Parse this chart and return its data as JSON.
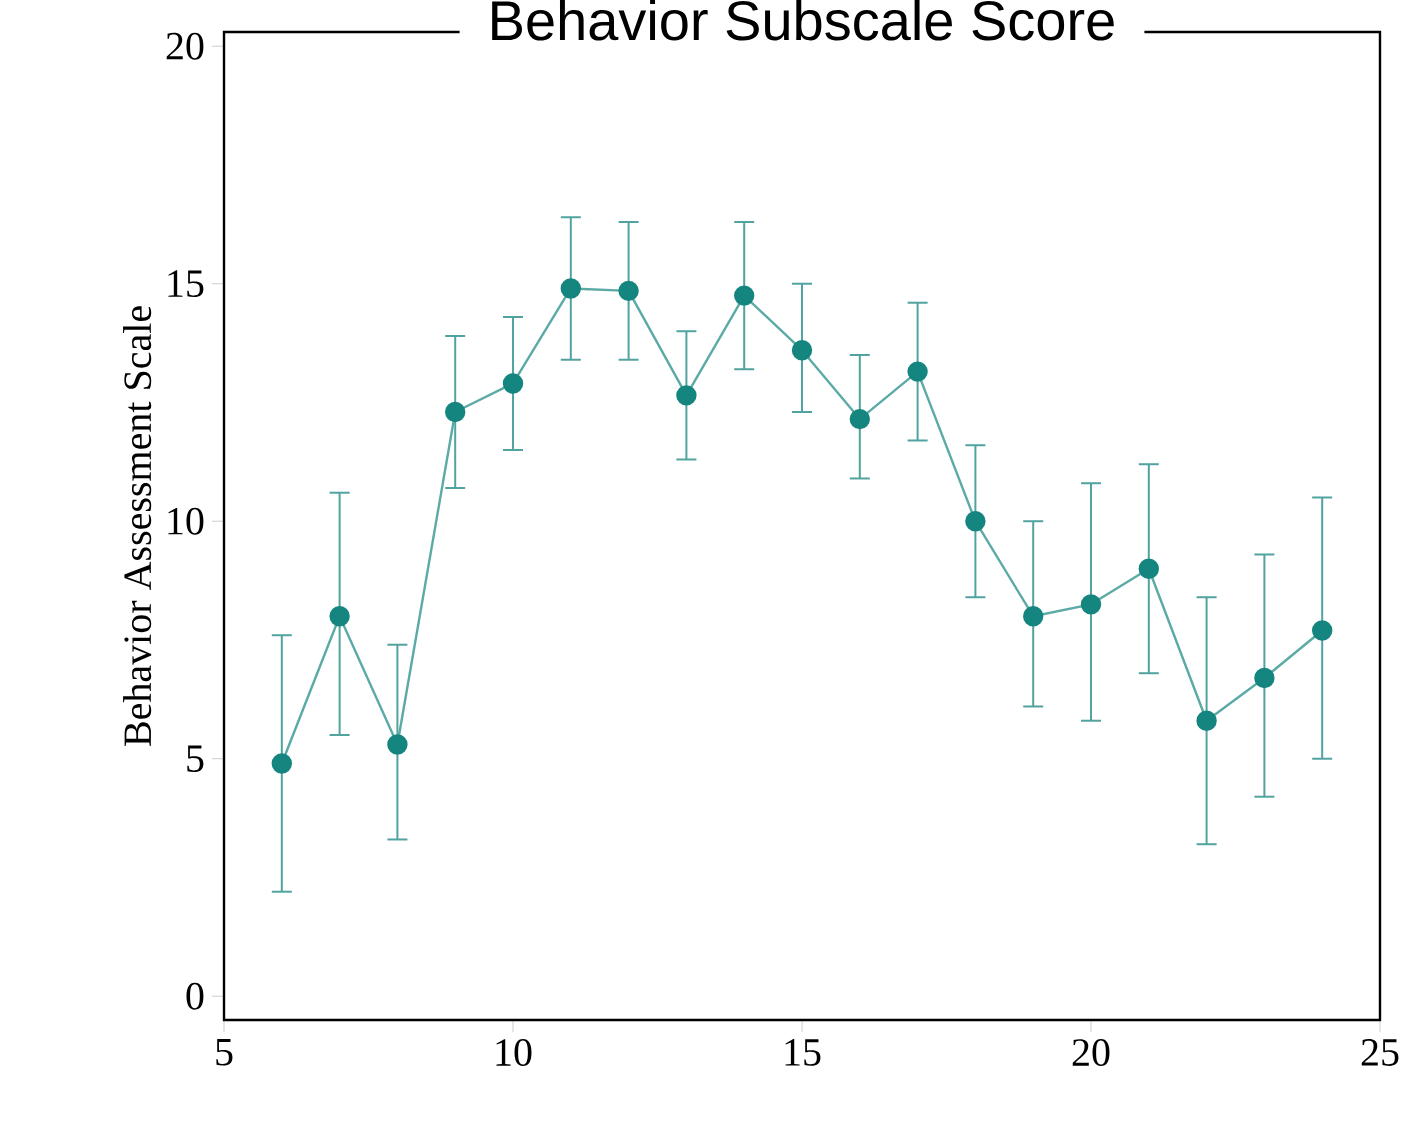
{
  "chart_data": {
    "type": "line",
    "title": "Behavior Subscale Score",
    "ylabel": "Behavior Assessment Scale",
    "x": [
      6,
      7,
      8,
      9,
      10,
      11,
      12,
      13,
      14,
      15,
      16,
      17,
      18,
      19,
      20,
      21,
      22,
      23,
      24
    ],
    "values": [
      4.9,
      8.0,
      5.3,
      12.3,
      12.9,
      14.9,
      14.85,
      12.65,
      14.75,
      13.6,
      12.15,
      13.15,
      10.0,
      8.0,
      8.25,
      9.0,
      5.8,
      6.7,
      7.7
    ],
    "errors": [
      [
        2.2,
        7.6
      ],
      [
        5.5,
        10.6
      ],
      [
        3.3,
        7.4
      ],
      [
        10.7,
        13.9
      ],
      [
        11.5,
        14.3
      ],
      [
        13.4,
        16.4
      ],
      [
        13.4,
        16.3
      ],
      [
        11.3,
        14.0
      ],
      [
        13.2,
        16.3
      ],
      [
        12.3,
        15.0
      ],
      [
        10.9,
        13.5
      ],
      [
        11.7,
        14.6
      ],
      [
        8.4,
        11.6
      ],
      [
        6.1,
        10.0
      ],
      [
        5.8,
        10.8
      ],
      [
        6.8,
        11.2
      ],
      [
        3.2,
        8.4
      ],
      [
        4.2,
        9.3
      ],
      [
        5.0,
        10.5
      ]
    ],
    "color": "#15857f",
    "marker": "circle",
    "line_style": "solid",
    "grid": false,
    "xlim": [
      5,
      25
    ],
    "ylim": [
      -0.5,
      20.3
    ],
    "xticks": [
      5,
      10,
      15,
      20,
      25
    ],
    "yticks": [
      0,
      5,
      10,
      15,
      20
    ]
  }
}
